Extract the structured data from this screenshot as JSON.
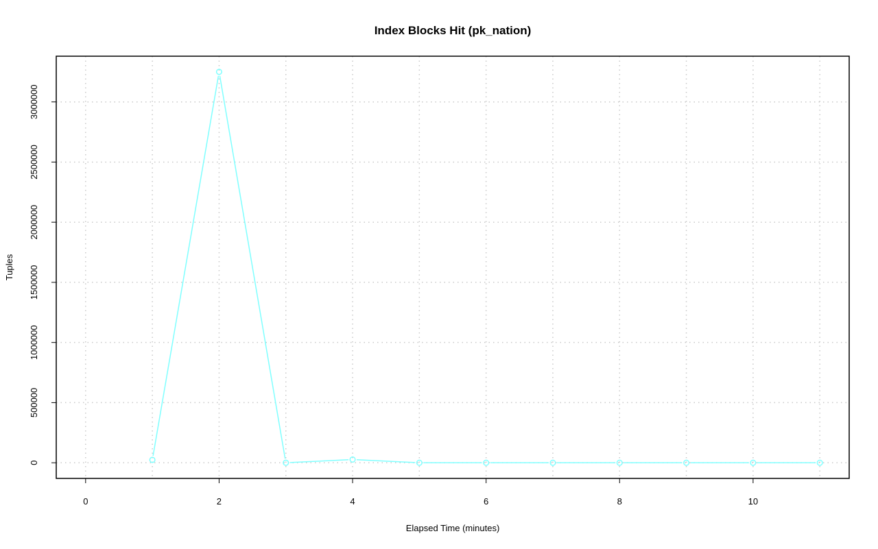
{
  "chart_data": {
    "type": "line",
    "title": "Index Blocks Hit (pk_nation)",
    "xlabel": "Elapsed Time (minutes)",
    "ylabel": "Tuples",
    "xlim": [
      0,
      11
    ],
    "ylim": [
      0,
      3250000
    ],
    "x_ticks": [
      0,
      2,
      4,
      6,
      8,
      10
    ],
    "y_ticks": [
      0,
      500000,
      1000000,
      1500000,
      2000000,
      2500000,
      3000000
    ],
    "grid": true,
    "series": [
      {
        "color": "#7fffff",
        "x": [
          1,
          2,
          3,
          4,
          5,
          6,
          7,
          8,
          9,
          10,
          11
        ],
        "y": [
          24000,
          3250000,
          0,
          27000,
          0,
          0,
          0,
          0,
          0,
          0,
          0
        ]
      }
    ]
  }
}
